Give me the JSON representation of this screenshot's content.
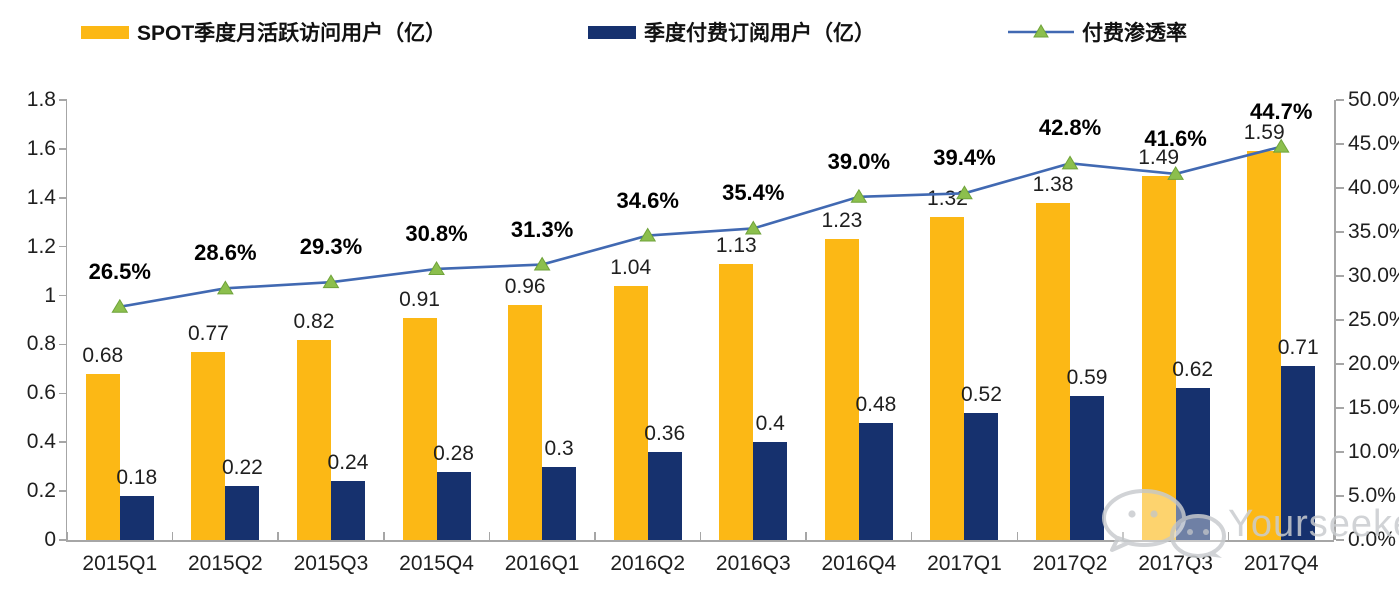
{
  "legend": {
    "items": [
      {
        "label": "SPOT季度月活跃访问用户（亿）",
        "swatch": "bar",
        "color": "#FCB815"
      },
      {
        "label": "季度付费订阅用户（亿）",
        "swatch": "bar",
        "color": "#16316E"
      },
      {
        "label": "付费渗透率",
        "swatch": "line",
        "color": "#4169B2",
        "marker_color": "#8CBF4D"
      }
    ]
  },
  "watermark": {
    "text": "Yourseeker",
    "icon": "wechat-icon"
  },
  "chart_data": {
    "type": "bar+line combo",
    "title": "",
    "legend_position": "top",
    "grid": false,
    "categories": [
      "2015Q1",
      "2015Q2",
      "2015Q3",
      "2015Q4",
      "2016Q1",
      "2016Q2",
      "2016Q3",
      "2016Q4",
      "2017Q1",
      "2017Q2",
      "2017Q3",
      "2017Q4"
    ],
    "series": [
      {
        "name": "SPOT季度月活跃访问用户（亿）",
        "type": "bar",
        "axis": "left",
        "color": "#FCB815",
        "values": [
          0.68,
          0.77,
          0.82,
          0.91,
          0.96,
          1.04,
          1.13,
          1.23,
          1.32,
          1.38,
          1.49,
          1.59
        ],
        "labels": [
          "0.68",
          "0.77",
          "0.82",
          "0.91",
          "0.96",
          "1.04",
          "1.13",
          "1.23",
          "1.32",
          "1.38",
          "1.49",
          "1.59"
        ]
      },
      {
        "name": "季度付费订阅用户（亿）",
        "type": "bar",
        "axis": "left",
        "color": "#16316E",
        "values": [
          0.18,
          0.22,
          0.24,
          0.28,
          0.3,
          0.36,
          0.4,
          0.48,
          0.52,
          0.59,
          0.62,
          0.71
        ],
        "labels": [
          "0.18",
          "0.22",
          "0.24",
          "0.28",
          "0.3",
          "0.36",
          "0.4",
          "0.48",
          "0.52",
          "0.59",
          "0.62",
          "0.71"
        ]
      },
      {
        "name": "付费渗透率",
        "type": "line",
        "axis": "right",
        "color": "#4169B2",
        "marker": "triangle",
        "marker_color": "#8CBF4D",
        "marker_edge": "#6FA33A",
        "values": [
          26.5,
          28.6,
          29.3,
          30.8,
          31.3,
          34.6,
          35.4,
          39.0,
          39.4,
          42.8,
          41.6,
          44.7
        ],
        "labels": [
          "26.5%",
          "28.6%",
          "29.3%",
          "30.8%",
          "31.3%",
          "34.6%",
          "35.4%",
          "39.0%",
          "39.4%",
          "42.8%",
          "41.6%",
          "44.7%"
        ]
      }
    ],
    "left_axis": {
      "min": 0,
      "max": 1.8,
      "step": 0.2,
      "ticks": [
        "0",
        "0.2",
        "0.4",
        "0.6",
        "0.8",
        "1",
        "1.2",
        "1.4",
        "1.6",
        "1.8"
      ]
    },
    "right_axis": {
      "min": 0,
      "max": 50,
      "step": 5,
      "ticks": [
        "0.0%",
        "5.0%",
        "10.0%",
        "15.0%",
        "20.0%",
        "25.0%",
        "30.0%",
        "35.0%",
        "40.0%",
        "45.0%",
        "50.0%"
      ]
    }
  }
}
